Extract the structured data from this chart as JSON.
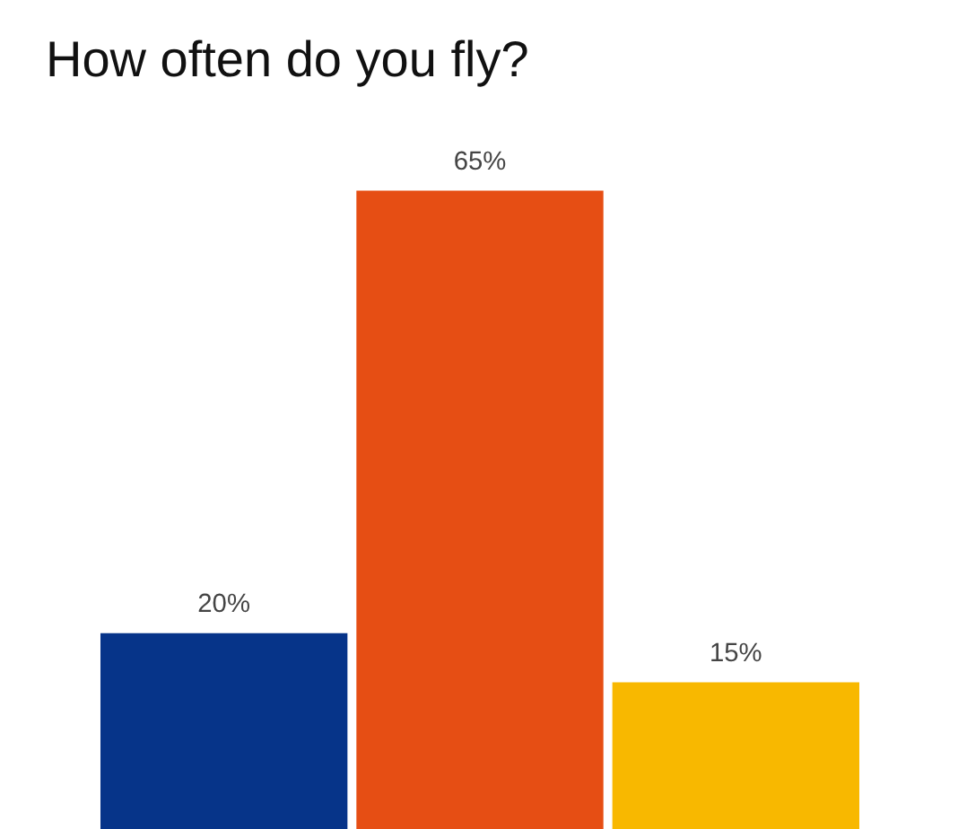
{
  "chart_data": {
    "type": "bar",
    "title": "How often do you fly?",
    "categories": [
      null,
      null,
      null
    ],
    "values": [
      20,
      65,
      15
    ],
    "colors": [
      "#063489",
      "#e64e14",
      "#f8b800"
    ],
    "value_labels": [
      "20%",
      "65%",
      "15%"
    ],
    "tick_labels": false,
    "grid": false
  }
}
